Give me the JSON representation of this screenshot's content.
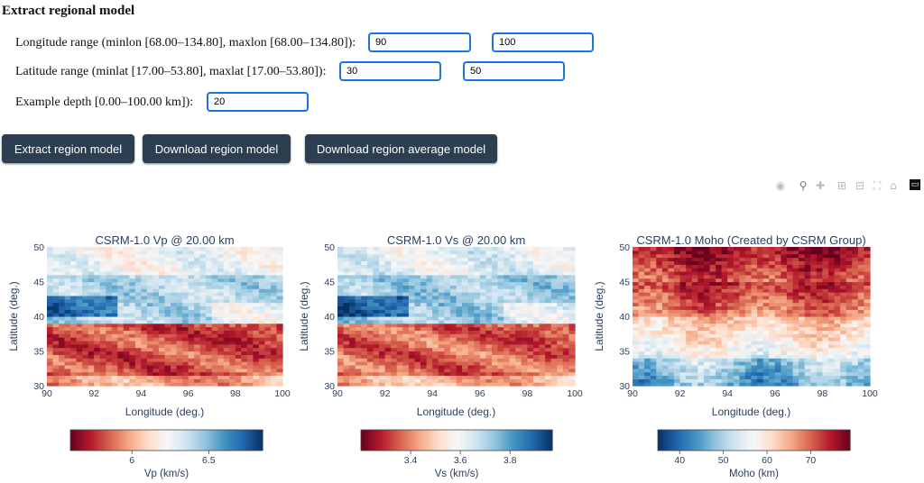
{
  "page": {
    "title": "Extract regional model",
    "lon_label": "Longitude range (minlon [68.00–134.80], maxlon [68.00–134.80]):",
    "lat_label": "Latitude range (minlat [17.00–53.80], maxlat [17.00–53.80]):",
    "depth_label": "Example depth [0.00–100.00 km]):",
    "inputs": {
      "minlon": "90",
      "maxlon": "100",
      "minlat": "30",
      "maxlat": "50",
      "depth": "20"
    },
    "buttons": {
      "extract": "Extract region model",
      "download": "Download region model",
      "download_avg": "Download region average model"
    }
  },
  "modebar_icons": [
    "camera-icon",
    "zoom-icon",
    "pan-icon",
    "zoom-in-icon",
    "zoom-out-icon",
    "autoscale-icon",
    "home-icon",
    "plotly-logo-icon"
  ],
  "colors": {
    "button_bg": "#2c3e50",
    "input_border": "#1a73e8",
    "axis_text": "#2a3f5f"
  },
  "chart_data": [
    {
      "type": "heatmap",
      "title": "CSRM-1.0 Vp @ 20.00 km",
      "xlabel": "Longitude (deg.)",
      "ylabel": "Latitude (deg.)",
      "xlim": [
        90,
        100
      ],
      "ylim": [
        30,
        50
      ],
      "xticks": [
        "90",
        "92",
        "94",
        "96",
        "98",
        "100"
      ],
      "yticks": [
        "30",
        "35",
        "40",
        "45",
        "50"
      ],
      "colorscale": "RdBu",
      "colorbar": {
        "title": "Vp (km/s)",
        "range": [
          5.6,
          6.85
        ],
        "ticks": [
          "6",
          "6.5"
        ],
        "tickvals": [
          6,
          6.5
        ]
      },
      "pattern": "vp"
    },
    {
      "type": "heatmap",
      "title": "CSRM-1.0 Vs @ 20.00 km",
      "xlabel": "Longitude (deg.)",
      "ylabel": "Latitude (deg.)",
      "xlim": [
        90,
        100
      ],
      "ylim": [
        30,
        50
      ],
      "xticks": [
        "90",
        "92",
        "94",
        "96",
        "98",
        "100"
      ],
      "yticks": [
        "30",
        "35",
        "40",
        "45",
        "50"
      ],
      "colorscale": "RdBu",
      "colorbar": {
        "title": "Vs (km/s)",
        "range": [
          3.2,
          3.97
        ],
        "ticks": [
          "3.4",
          "3.6",
          "3.8"
        ],
        "tickvals": [
          3.4,
          3.6,
          3.8
        ]
      },
      "pattern": "vs"
    },
    {
      "type": "heatmap",
      "title": "CSRM-1.0 Moho (Created by CSRM Group)",
      "xlabel": "Longitude (deg.)",
      "ylabel": "Latitude (deg.)",
      "xlim": [
        90,
        100
      ],
      "ylim": [
        30,
        50
      ],
      "xticks": [
        "90",
        "92",
        "94",
        "96",
        "98",
        "100"
      ],
      "yticks": [
        "30",
        "35",
        "40",
        "45",
        "50"
      ],
      "colorscale": "RdBu",
      "colorbar": {
        "title": "Moho (km)",
        "range": [
          35,
          79
        ],
        "ticks": [
          "40",
          "50",
          "60",
          "70"
        ],
        "tickvals": [
          40,
          50,
          60,
          70
        ]
      },
      "pattern": "moho"
    }
  ]
}
